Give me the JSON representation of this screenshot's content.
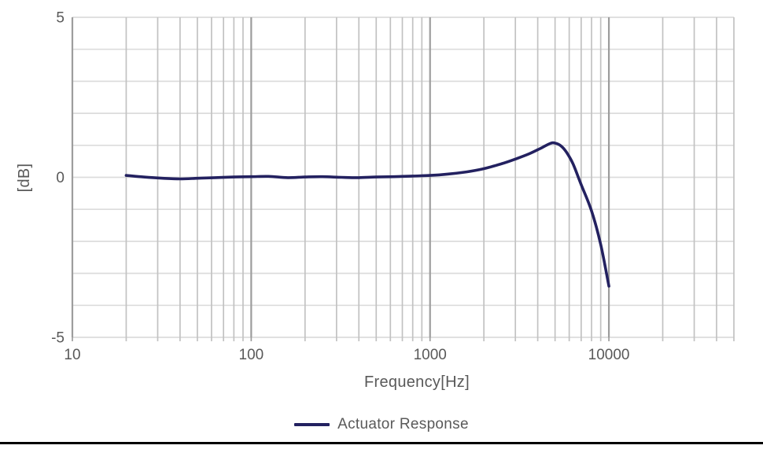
{
  "chart_data": {
    "type": "line",
    "title": "",
    "xlabel": "Frequency[Hz]",
    "ylabel": "[dB]",
    "x_scale": "log",
    "xlim": [
      10,
      50000
    ],
    "ylim": [
      -5,
      5
    ],
    "y_grid_step": 1,
    "grid": "both",
    "x_ticks": [
      {
        "value": 10,
        "label": "10"
      },
      {
        "value": 100,
        "label": "100"
      },
      {
        "value": 1000,
        "label": "1000"
      },
      {
        "value": 10000,
        "label": "10000"
      }
    ],
    "y_ticks": [
      {
        "value": 5,
        "label": "5"
      },
      {
        "value": 0,
        "label": "0"
      },
      {
        "value": -5,
        "label": "-5"
      }
    ],
    "legend_position": "bottom",
    "series": [
      {
        "name": "Actuator Response",
        "color": "#232160",
        "points": [
          [
            20,
            0.06
          ],
          [
            25,
            0.01
          ],
          [
            32,
            -0.03
          ],
          [
            40,
            -0.05
          ],
          [
            50,
            -0.03
          ],
          [
            63,
            -0.01
          ],
          [
            80,
            0.01
          ],
          [
            100,
            0.02
          ],
          [
            125,
            0.03
          ],
          [
            160,
            -0.01
          ],
          [
            200,
            0.01
          ],
          [
            250,
            0.02
          ],
          [
            320,
            0.0
          ],
          [
            400,
            -0.01
          ],
          [
            500,
            0.01
          ],
          [
            630,
            0.02
          ],
          [
            800,
            0.04
          ],
          [
            1000,
            0.06
          ],
          [
            1250,
            0.1
          ],
          [
            1600,
            0.17
          ],
          [
            2000,
            0.27
          ],
          [
            2500,
            0.42
          ],
          [
            3000,
            0.57
          ],
          [
            3600,
            0.74
          ],
          [
            4200,
            0.92
          ],
          [
            4700,
            1.06
          ],
          [
            5000,
            1.07
          ],
          [
            5400,
            0.98
          ],
          [
            5800,
            0.78
          ],
          [
            6300,
            0.42
          ],
          [
            7000,
            -0.23
          ],
          [
            8000,
            -1.05
          ],
          [
            9000,
            -2.1
          ],
          [
            10000,
            -3.4
          ]
        ]
      }
    ]
  },
  "colors": {
    "background": "#ffffff",
    "h_grid": "#dcdcdc",
    "v_grid_minor": "#c2c2c2",
    "v_grid_major": "#9d9d9d",
    "text": "#595959",
    "line": "#232160",
    "bottom_border": "#000000"
  }
}
